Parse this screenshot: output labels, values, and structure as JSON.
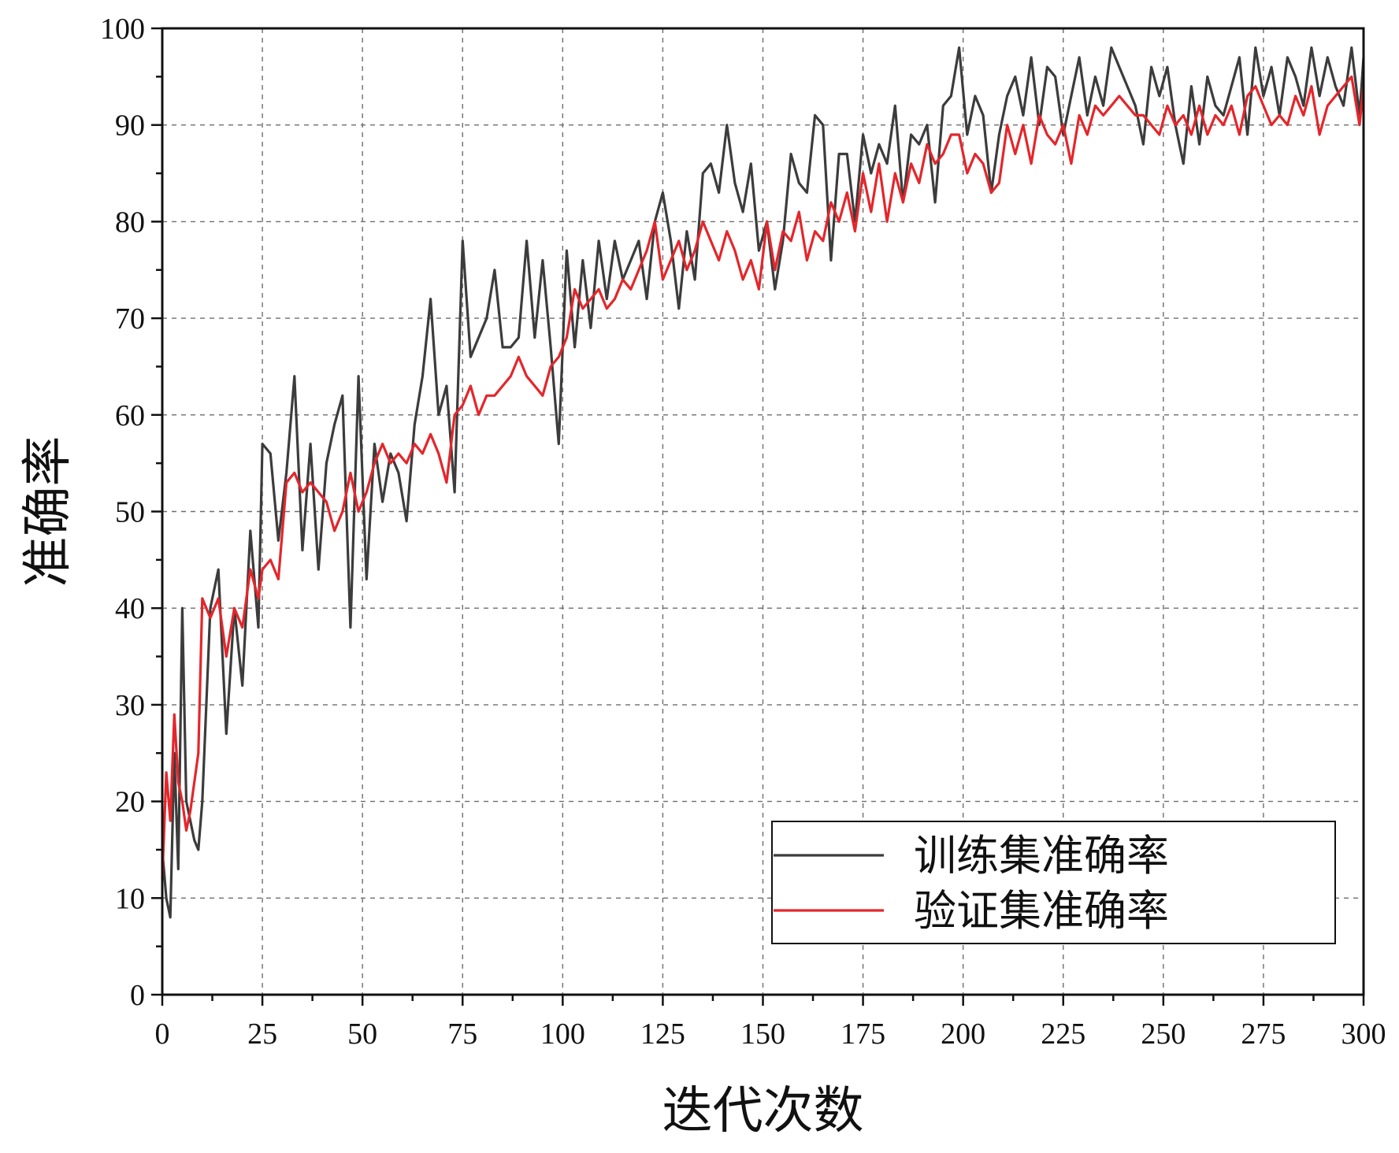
{
  "chart_data": {
    "type": "line",
    "title": "",
    "xlabel": "迭代次数",
    "ylabel": "准确率",
    "xlim": [
      0,
      300
    ],
    "ylim": [
      0,
      100
    ],
    "x_ticks": [
      0,
      25,
      50,
      75,
      100,
      125,
      150,
      175,
      200,
      225,
      250,
      275,
      300
    ],
    "y_ticks": [
      0,
      10,
      20,
      30,
      40,
      50,
      60,
      70,
      80,
      90,
      100
    ],
    "grid": true,
    "legend_position": "bottom-right",
    "series": [
      {
        "name": "训练集准确率",
        "color": "#3c3c3c",
        "x": [
          0,
          1,
          2,
          3,
          4,
          5,
          6,
          7,
          8,
          9,
          10,
          12,
          14,
          16,
          18,
          20,
          22,
          24,
          25,
          27,
          29,
          31,
          33,
          35,
          37,
          39,
          41,
          43,
          45,
          47,
          49,
          51,
          53,
          55,
          57,
          59,
          61,
          63,
          65,
          67,
          69,
          71,
          73,
          75,
          77,
          79,
          81,
          83,
          85,
          87,
          89,
          91,
          93,
          95,
          97,
          99,
          101,
          103,
          105,
          107,
          109,
          111,
          113,
          115,
          117,
          119,
          121,
          123,
          125,
          127,
          129,
          131,
          133,
          135,
          137,
          139,
          141,
          143,
          145,
          147,
          149,
          151,
          153,
          155,
          157,
          159,
          161,
          163,
          165,
          167,
          169,
          171,
          173,
          175,
          177,
          179,
          181,
          183,
          185,
          187,
          189,
          191,
          193,
          195,
          197,
          199,
          201,
          203,
          205,
          207,
          209,
          211,
          213,
          215,
          217,
          219,
          221,
          223,
          225,
          227,
          229,
          231,
          233,
          235,
          237,
          239,
          241,
          243,
          245,
          247,
          249,
          251,
          253,
          255,
          257,
          259,
          261,
          263,
          265,
          267,
          269,
          271,
          273,
          275,
          277,
          279,
          281,
          283,
          285,
          287,
          289,
          291,
          293,
          295,
          297,
          299,
          300
        ],
        "y": [
          15,
          10,
          8,
          25,
          13,
          40,
          20,
          18,
          16,
          15,
          20,
          40,
          44,
          27,
          40,
          32,
          48,
          38,
          57,
          56,
          47,
          54,
          64,
          46,
          57,
          44,
          55,
          59,
          62,
          38,
          64,
          43,
          57,
          51,
          56,
          54,
          49,
          59,
          64,
          72,
          60,
          63,
          52,
          78,
          66,
          68,
          70,
          75,
          67,
          67,
          68,
          78,
          68,
          76,
          67,
          57,
          77,
          67,
          76,
          69,
          78,
          72,
          78,
          74,
          76,
          78,
          72,
          80,
          83,
          78,
          71,
          79,
          74,
          85,
          86,
          83,
          90,
          84,
          81,
          86,
          77,
          80,
          73,
          78,
          87,
          84,
          83,
          91,
          90,
          76,
          87,
          87,
          80,
          89,
          85,
          88,
          86,
          92,
          82,
          89,
          88,
          90,
          82,
          92,
          93,
          98,
          89,
          93,
          91,
          83,
          89,
          93,
          95,
          91,
          97,
          90,
          96,
          95,
          89,
          93,
          97,
          91,
          95,
          92,
          98,
          96,
          94,
          92,
          88,
          96,
          93,
          96,
          90,
          86,
          94,
          88,
          95,
          92,
          91,
          94,
          97,
          89,
          98,
          93,
          96,
          91,
          97,
          95,
          92,
          98,
          93,
          97,
          94,
          92,
          98,
          91,
          97
        ]
      },
      {
        "name": "验证集准确率",
        "color": "#e4262b",
        "x": [
          0,
          1,
          2,
          3,
          4,
          5,
          6,
          7,
          8,
          9,
          10,
          12,
          14,
          16,
          18,
          20,
          22,
          24,
          25,
          27,
          29,
          31,
          33,
          35,
          37,
          39,
          41,
          43,
          45,
          47,
          49,
          51,
          53,
          55,
          57,
          59,
          61,
          63,
          65,
          67,
          69,
          71,
          73,
          75,
          77,
          79,
          81,
          83,
          85,
          87,
          89,
          91,
          93,
          95,
          97,
          99,
          101,
          103,
          105,
          107,
          109,
          111,
          113,
          115,
          117,
          119,
          121,
          123,
          125,
          127,
          129,
          131,
          133,
          135,
          137,
          139,
          141,
          143,
          145,
          147,
          149,
          151,
          153,
          155,
          157,
          159,
          161,
          163,
          165,
          167,
          169,
          171,
          173,
          175,
          177,
          179,
          181,
          183,
          185,
          187,
          189,
          191,
          193,
          195,
          197,
          199,
          201,
          203,
          205,
          207,
          209,
          211,
          213,
          215,
          217,
          219,
          221,
          223,
          225,
          227,
          229,
          231,
          233,
          235,
          237,
          239,
          241,
          243,
          245,
          247,
          249,
          251,
          253,
          255,
          257,
          259,
          261,
          263,
          265,
          267,
          269,
          271,
          273,
          275,
          277,
          279,
          281,
          283,
          285,
          287,
          289,
          291,
          293,
          295,
          297,
          299,
          300
        ],
        "y": [
          12,
          23,
          18,
          29,
          22,
          20,
          17,
          19,
          22,
          25,
          41,
          39,
          41,
          35,
          40,
          38,
          44,
          41,
          44,
          45,
          43,
          53,
          54,
          52,
          53,
          52,
          51,
          48,
          50,
          54,
          50,
          52,
          55,
          57,
          55,
          56,
          55,
          57,
          56,
          58,
          56,
          53,
          60,
          61,
          63,
          60,
          62,
          62,
          63,
          64,
          66,
          64,
          63,
          62,
          65,
          66,
          68,
          73,
          71,
          72,
          73,
          71,
          72,
          74,
          73,
          75,
          77,
          80,
          74,
          76,
          78,
          75,
          77,
          80,
          78,
          76,
          79,
          77,
          74,
          76,
          73,
          80,
          75,
          79,
          78,
          81,
          76,
          79,
          78,
          82,
          80,
          83,
          79,
          85,
          81,
          86,
          80,
          85,
          82,
          86,
          84,
          88,
          86,
          87,
          89,
          89,
          85,
          87,
          86,
          83,
          84,
          90,
          87,
          90,
          86,
          91,
          89,
          88,
          90,
          86,
          91,
          89,
          92,
          91,
          92,
          93,
          92,
          91,
          91,
          90,
          89,
          92,
          90,
          91,
          89,
          92,
          89,
          91,
          90,
          92,
          89,
          93,
          94,
          92,
          90,
          91,
          90,
          93,
          91,
          94,
          89,
          92,
          93,
          94,
          95,
          90,
          94
        ]
      }
    ]
  }
}
